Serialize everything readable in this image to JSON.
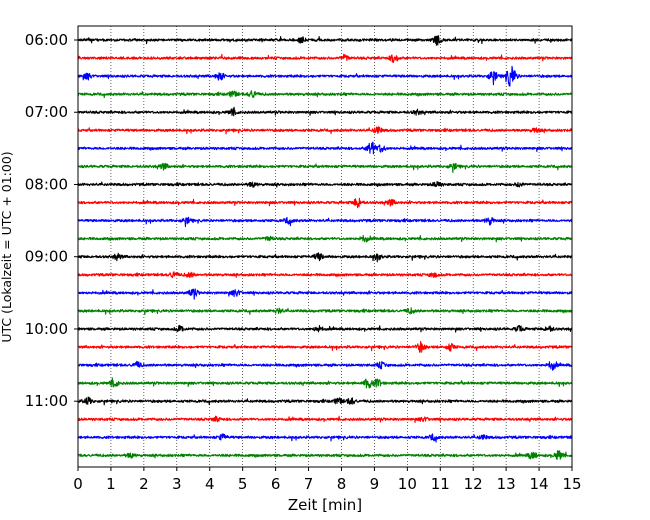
{
  "chart_data": {
    "type": "line",
    "title": "",
    "xlabel": "Zeit  [min]",
    "ylabel": "UTC (Lokalzeit = UTC + 01:00)",
    "xlim": [
      0,
      15
    ],
    "x_ticks": [
      "0",
      "1",
      "2",
      "3",
      "4",
      "5",
      "6",
      "7",
      "8",
      "9",
      "10",
      "11",
      "12",
      "13",
      "14",
      "15"
    ],
    "y_ticks": [
      "06:00",
      "07:00",
      "08:00",
      "09:00",
      "10:00",
      "11:00"
    ],
    "grid": "vertical-dotted",
    "trace_colors": [
      "#000000",
      "#ff0000",
      "#0000ff",
      "#008000"
    ],
    "traces": [
      {
        "start": "06:00",
        "events": [
          [
            6.8,
            0.4
          ],
          [
            10.9,
            0.7
          ]
        ]
      },
      {
        "start": "06:15",
        "events": [
          [
            8.1,
            0.4
          ],
          [
            9.6,
            0.6
          ]
        ]
      },
      {
        "start": "06:30",
        "events": [
          [
            0.3,
            0.4
          ],
          [
            4.3,
            0.5
          ],
          [
            12.6,
            0.8
          ],
          [
            13.1,
            1.0
          ],
          [
            13.2,
            0.7
          ]
        ]
      },
      {
        "start": "06:45",
        "events": [
          [
            4.7,
            0.4
          ],
          [
            5.3,
            0.5
          ]
        ]
      },
      {
        "start": "07:00",
        "events": [
          [
            4.7,
            0.4
          ],
          [
            10.3,
            0.3
          ]
        ]
      },
      {
        "start": "07:15",
        "events": [
          [
            9.1,
            0.5
          ],
          [
            13.9,
            0.3
          ]
        ]
      },
      {
        "start": "07:30",
        "events": [
          [
            8.9,
            1.0
          ],
          [
            9.2,
            0.5
          ]
        ]
      },
      {
        "start": "07:45",
        "events": [
          [
            2.6,
            0.4
          ],
          [
            11.4,
            0.4
          ]
        ]
      },
      {
        "start": "08:00",
        "events": [
          [
            5.3,
            0.3
          ],
          [
            10.9,
            0.4
          ],
          [
            13.4,
            0.3
          ]
        ]
      },
      {
        "start": "08:15",
        "events": [
          [
            8.5,
            0.7
          ],
          [
            9.5,
            0.4
          ]
        ]
      },
      {
        "start": "08:30",
        "events": [
          [
            3.3,
            0.4
          ],
          [
            6.4,
            0.4
          ],
          [
            12.5,
            0.5
          ]
        ]
      },
      {
        "start": "08:45",
        "events": [
          [
            5.8,
            0.3
          ],
          [
            8.7,
            0.4
          ]
        ]
      },
      {
        "start": "09:00",
        "events": [
          [
            1.2,
            0.4
          ],
          [
            7.3,
            0.5
          ],
          [
            9.1,
            0.4
          ]
        ]
      },
      {
        "start": "09:15",
        "events": [
          [
            2.9,
            0.4
          ],
          [
            3.4,
            0.3
          ],
          [
            10.8,
            0.3
          ]
        ]
      },
      {
        "start": "09:30",
        "events": [
          [
            3.5,
            0.6
          ],
          [
            4.8,
            0.5
          ]
        ]
      },
      {
        "start": "09:45",
        "events": [
          [
            6.1,
            0.3
          ],
          [
            10.1,
            0.3
          ]
        ]
      },
      {
        "start": "10:00",
        "events": [
          [
            3.1,
            0.4
          ],
          [
            7.3,
            0.4
          ],
          [
            13.4,
            0.4
          ],
          [
            14.3,
            0.4
          ]
        ]
      },
      {
        "start": "10:15",
        "events": [
          [
            10.4,
            0.7
          ],
          [
            11.3,
            0.5
          ]
        ]
      },
      {
        "start": "10:30",
        "events": [
          [
            1.8,
            0.4
          ],
          [
            9.2,
            0.4
          ],
          [
            14.4,
            0.6
          ]
        ]
      },
      {
        "start": "10:45",
        "events": [
          [
            1.1,
            0.5
          ],
          [
            8.8,
            0.7
          ],
          [
            9.1,
            0.5
          ]
        ]
      },
      {
        "start": "11:00",
        "events": [
          [
            0.3,
            0.5
          ],
          [
            7.9,
            0.4
          ],
          [
            8.3,
            0.4
          ]
        ]
      },
      {
        "start": "11:15",
        "events": [
          [
            4.2,
            0.3
          ],
          [
            10.5,
            0.3
          ]
        ]
      },
      {
        "start": "11:30",
        "events": [
          [
            4.4,
            0.4
          ],
          [
            10.8,
            0.4
          ],
          [
            12.3,
            0.3
          ]
        ]
      },
      {
        "start": "11:45",
        "events": [
          [
            1.6,
            0.3
          ],
          [
            13.8,
            0.5
          ],
          [
            14.6,
            0.6
          ]
        ]
      }
    ]
  }
}
